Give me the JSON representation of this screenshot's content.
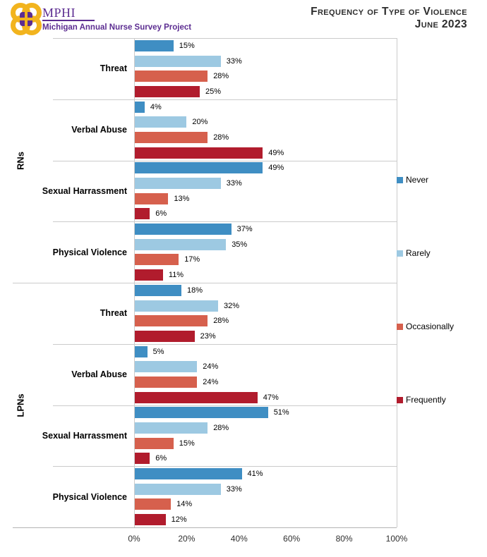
{
  "header": {
    "logo": {
      "acronym": "MPHI",
      "subtitle": "Michigan Annual Nurse Survey Project",
      "brand_color": "#5C2D91",
      "gold_color": "#F2B41E"
    },
    "title_line1": "Frequency of Type of Violence",
    "title_line2": "June 2023"
  },
  "legend": {
    "items": [
      {
        "label": "Never",
        "color": "#3F8EC3"
      },
      {
        "label": "Rarely",
        "color": "#9DC9E2"
      },
      {
        "label": "Occasionally",
        "color": "#D6604D"
      },
      {
        "label": "Frequently",
        "color": "#B11C2D"
      }
    ]
  },
  "chart_data": {
    "type": "bar",
    "orientation": "horizontal",
    "title": "Frequency of Type of Violence",
    "subtitle": "June 2023",
    "series": [
      "Never",
      "Rarely",
      "Occasionally",
      "Frequently"
    ],
    "series_colors": [
      "#3F8EC3",
      "#9DC9E2",
      "#D6604D",
      "#B11C2D"
    ],
    "x_ticks": [
      "0%",
      "20%",
      "40%",
      "60%",
      "80%",
      "100%"
    ],
    "xlim": [
      0,
      100
    ],
    "legend_position": "right",
    "grid": "category separator lines only",
    "groups": [
      {
        "label": "RNs",
        "categories": [
          {
            "label": "Threat",
            "values": [
              15,
              33,
              28,
              25
            ],
            "value_labels": [
              "15%",
              "33%",
              "28%",
              "25%"
            ]
          },
          {
            "label": "Verbal Abuse",
            "values": [
              4,
              20,
              28,
              49
            ],
            "value_labels": [
              "4%",
              "20%",
              "28%",
              "49%"
            ]
          },
          {
            "label": "Sexual Harrassment",
            "values": [
              49,
              33,
              13,
              6
            ],
            "value_labels": [
              "49%",
              "33%",
              "13%",
              "6%"
            ]
          },
          {
            "label": "Physical Violence",
            "values": [
              37,
              35,
              17,
              11
            ],
            "value_labels": [
              "37%",
              "35%",
              "17%",
              "11%"
            ]
          }
        ]
      },
      {
        "label": "LPNs",
        "categories": [
          {
            "label": "Threat",
            "values": [
              18,
              32,
              28,
              23
            ],
            "value_labels": [
              "18%",
              "32%",
              "28%",
              "23%"
            ]
          },
          {
            "label": "Verbal Abuse",
            "values": [
              5,
              24,
              24,
              47
            ],
            "value_labels": [
              "5%",
              "24%",
              "24%",
              "47%"
            ]
          },
          {
            "label": "Sexual Harrassment",
            "values": [
              51,
              28,
              15,
              6
            ],
            "value_labels": [
              "51%",
              "28%",
              "15%",
              "6%"
            ]
          },
          {
            "label": "Physical Violence",
            "values": [
              41,
              33,
              14,
              12
            ],
            "value_labels": [
              "41%",
              "33%",
              "14%",
              "12%"
            ]
          }
        ]
      }
    ]
  }
}
